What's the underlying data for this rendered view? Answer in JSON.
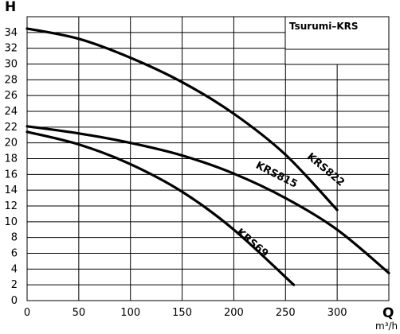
{
  "chart_data": {
    "type": "line",
    "title": "Tsurumi–KRS",
    "ylabel": "H",
    "xlabel": "Q",
    "xunit": "m³/h",
    "xlim": [
      0,
      350
    ],
    "ylim": [
      0,
      36
    ],
    "xticks": [
      0,
      50,
      100,
      150,
      200,
      250,
      300
    ],
    "yticks": [
      0,
      2,
      4,
      6,
      8,
      10,
      12,
      14,
      16,
      18,
      20,
      22,
      24,
      26,
      28,
      30,
      32,
      34
    ],
    "grid": true,
    "series": [
      {
        "name": "KRS822",
        "x": [
          0,
          50,
          100,
          150,
          200,
          250,
          300
        ],
        "y": [
          34.5,
          33.2,
          30.8,
          27.7,
          23.7,
          18.5,
          11.5
        ]
      },
      {
        "name": "KRS815",
        "x": [
          0,
          50,
          100,
          150,
          200,
          250,
          300,
          350
        ],
        "y": [
          22.1,
          21.2,
          20.0,
          18.4,
          16.1,
          13.0,
          9.0,
          3.5
        ]
      },
      {
        "name": "KRS69",
        "x": [
          0,
          50,
          100,
          150,
          200,
          258
        ],
        "y": [
          21.4,
          19.8,
          17.3,
          13.8,
          9.0,
          2.0
        ]
      }
    ]
  }
}
